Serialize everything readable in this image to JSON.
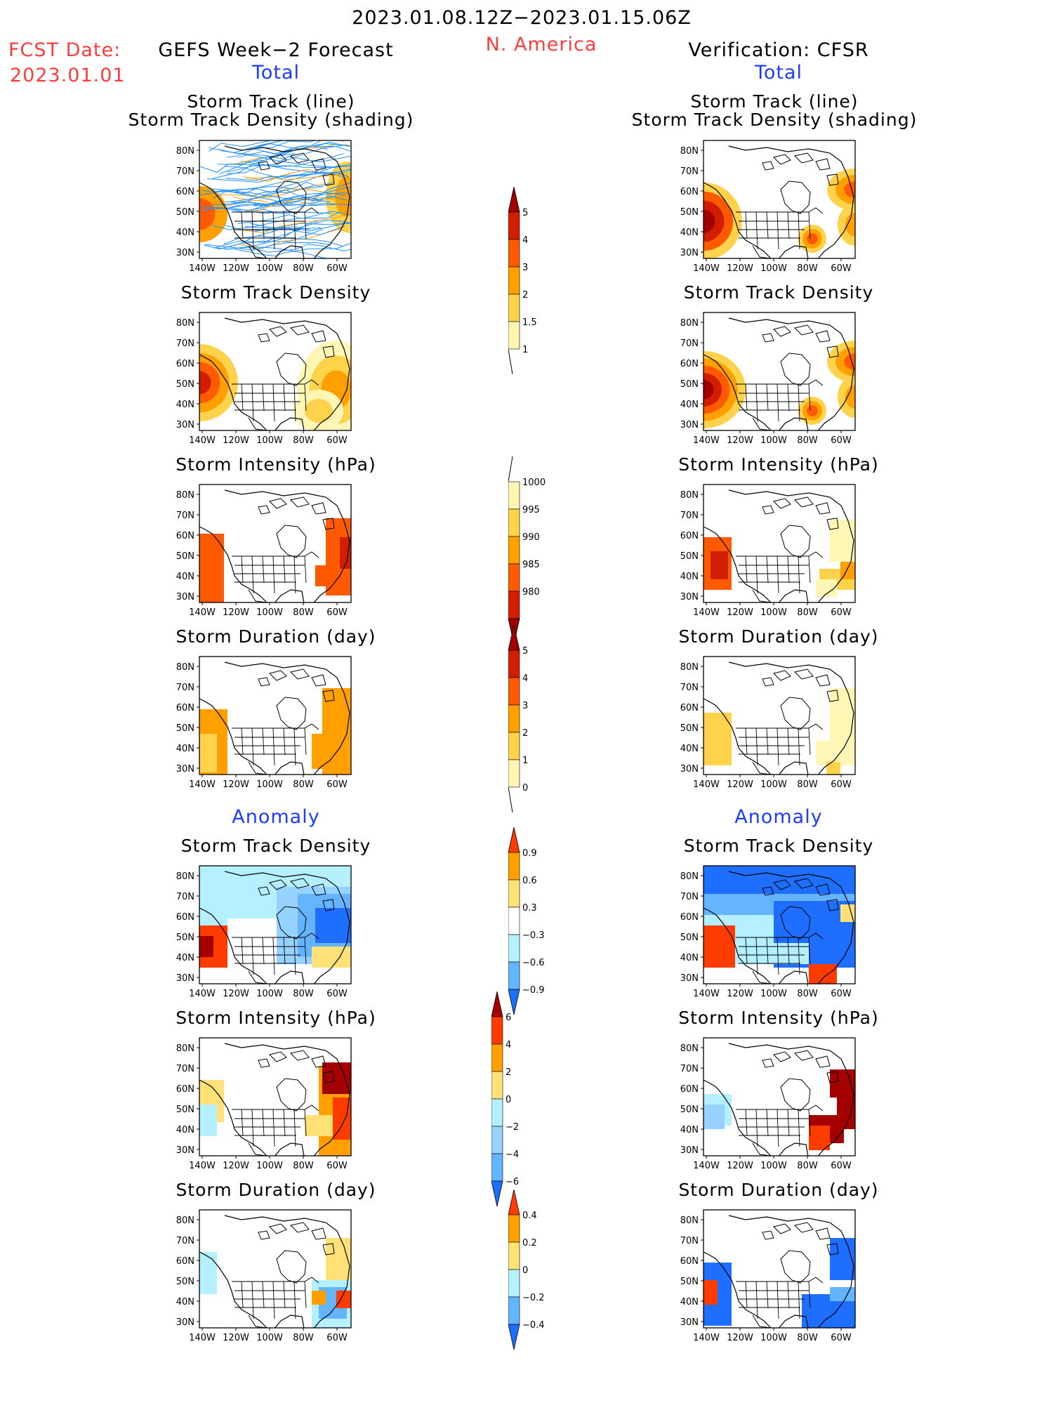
{
  "header": {
    "period": "2023.01.08.12Z−2023.01.15.06Z",
    "region": "N. America",
    "fcst_label": "FCST Date:",
    "fcst_date": "2023.01.01",
    "left_title": "GEFS Week−2 Forecast",
    "right_title": "Verification: CFSR",
    "total_label": "Total",
    "anomaly_label": "Anomaly"
  },
  "axis": {
    "lat_ticks": [
      "80N",
      "70N",
      "60N",
      "50N",
      "40N",
      "30N"
    ],
    "lon_ticks": [
      "140W",
      "120W",
      "100W",
      "80W",
      "60W"
    ]
  },
  "panels": {
    "track_line_title_1": "Storm Track (line)",
    "track_line_title_2": "Storm Track Density (shading)",
    "density_title": "Storm Track Density",
    "intensity_title": "Storm Intensity (hPa)",
    "duration_title": "Storm Duration (day)"
  },
  "colorbars": {
    "density_total": {
      "labels": [
        "5",
        "4",
        "3",
        "2",
        "1.5",
        "1"
      ],
      "colors": [
        "#a50000",
        "#d21e00",
        "#ff5a00",
        "#ffa000",
        "#ffd24b",
        "#fff5b4"
      ]
    },
    "intensity_total": {
      "labels": [
        "1000",
        "995",
        "990",
        "985",
        "980"
      ],
      "colors": [
        "#fff5b4",
        "#ffd24b",
        "#ffa000",
        "#ff5a00",
        "#d21e00",
        "#a50000"
      ]
    },
    "duration_total": {
      "labels": [
        "5",
        "4",
        "3",
        "2",
        "1",
        "0"
      ],
      "colors": [
        "#a50000",
        "#d21e00",
        "#ff5a00",
        "#ffa000",
        "#ffd24b",
        "#fff5b4"
      ]
    },
    "density_anom": {
      "labels": [
        "0.9",
        "0.6",
        "0.3",
        "−0.3",
        "−0.6",
        "−0.9"
      ],
      "colors": [
        "#ff3c00",
        "#ffa000",
        "#ffe178",
        "#ffffff",
        "#b4f0ff",
        "#64b4ff",
        "#1e6eff"
      ]
    },
    "intensity_anom": {
      "labels": [
        "6",
        "4",
        "2",
        "0",
        "−2",
        "−4",
        "−6"
      ],
      "colors": [
        "#a50000",
        "#ff3c00",
        "#ffa000",
        "#ffe178",
        "#b4f0ff",
        "#96d2ff",
        "#64b4ff",
        "#1e6eff"
      ]
    },
    "duration_anom": {
      "labels": [
        "0.4",
        "0.2",
        "0",
        "−0.2",
        "−0.4"
      ],
      "colors": [
        "#ff3c00",
        "#ffa000",
        "#ffe178",
        "#b4f0ff",
        "#64b4ff",
        "#1e6eff"
      ]
    }
  }
}
